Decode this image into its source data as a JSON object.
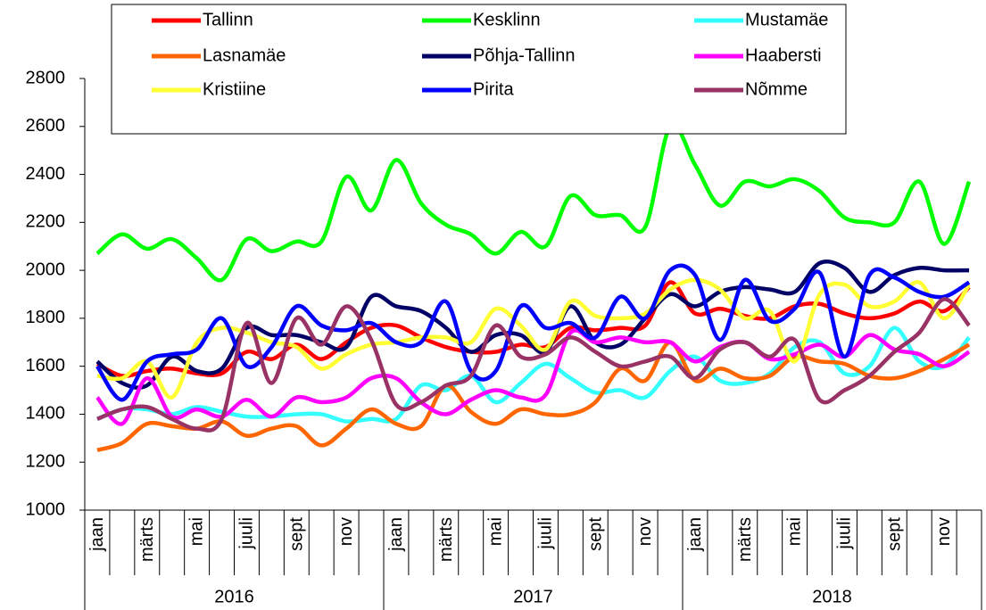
{
  "chart_data": {
    "type": "line",
    "categories": [
      "jaan",
      null,
      "märts",
      null,
      "mai",
      null,
      "juuli",
      null,
      "sept",
      null,
      "nov",
      null,
      "jaan",
      null,
      "märts",
      null,
      "mai",
      null,
      "juuli",
      null,
      "sept",
      null,
      "nov",
      null,
      "jaan",
      null,
      "märts",
      null,
      "mai",
      null,
      "juuli",
      null,
      "sept",
      null,
      "nov",
      null
    ],
    "years": [
      "2016",
      "2017",
      "2018"
    ],
    "ylim": [
      1000,
      2800
    ],
    "yticks": [
      1000,
      1200,
      1400,
      1600,
      1800,
      2000,
      2200,
      2400,
      2600,
      2800
    ],
    "series": [
      {
        "name": "Tallinn",
        "color": "#ff0000",
        "values": [
          1610,
          1560,
          1580,
          1590,
          1570,
          1570,
          1660,
          1630,
          1690,
          1630,
          1700,
          1760,
          1770,
          1720,
          1680,
          1660,
          1660,
          1690,
          1680,
          1760,
          1750,
          1760,
          1770,
          1950,
          1820,
          1840,
          1810,
          1800,
          1850,
          1860,
          1820,
          1800,
          1820,
          1870,
          1830,
          1930
        ]
      },
      {
        "name": "Kesklinn",
        "color": "#00ff00",
        "values": [
          2070,
          2150,
          2090,
          2130,
          2050,
          1960,
          2130,
          2080,
          2120,
          2120,
          2390,
          2250,
          2460,
          2280,
          2190,
          2150,
          2070,
          2160,
          2100,
          2310,
          2230,
          2230,
          2180,
          2600,
          2440,
          2270,
          2370,
          2350,
          2380,
          2330,
          2220,
          2200,
          2200,
          2370,
          2110,
          2370
        ]
      },
      {
        "name": "Mustamäe",
        "color": "#33ffff",
        "values": [
          1380,
          1420,
          1420,
          1400,
          1430,
          1410,
          1390,
          1390,
          1400,
          1400,
          1370,
          1380,
          1380,
          1520,
          1500,
          1560,
          1450,
          1530,
          1610,
          1550,
          1490,
          1500,
          1470,
          1580,
          1640,
          1540,
          1530,
          1570,
          1680,
          1700,
          1570,
          1600,
          1760,
          1620,
          1600,
          1720
        ]
      },
      {
        "name": "Lasnamäe",
        "color": "#ff6600",
        "values": [
          1250,
          1280,
          1360,
          1350,
          1340,
          1370,
          1310,
          1340,
          1350,
          1270,
          1340,
          1420,
          1360,
          1350,
          1520,
          1410,
          1360,
          1420,
          1400,
          1400,
          1450,
          1590,
          1540,
          1700,
          1540,
          1590,
          1550,
          1560,
          1640,
          1620,
          1610,
          1560,
          1550,
          1580,
          1630,
          1690
        ]
      },
      {
        "name": "Põhja-Tallinn",
        "color": "#000066",
        "values": [
          1620,
          1530,
          1520,
          1640,
          1580,
          1590,
          1760,
          1730,
          1730,
          1700,
          1680,
          1890,
          1850,
          1830,
          1760,
          1660,
          1730,
          1730,
          1660,
          1850,
          1700,
          1690,
          1800,
          1900,
          1850,
          1910,
          1930,
          1920,
          1910,
          2030,
          2010,
          1910,
          1980,
          2010,
          2000,
          2000
        ]
      },
      {
        "name": "Haabersti",
        "color": "#ff00ff",
        "values": [
          1470,
          1360,
          1550,
          1390,
          1420,
          1390,
          1460,
          1390,
          1470,
          1450,
          1470,
          1550,
          1550,
          1450,
          1400,
          1460,
          1500,
          1470,
          1480,
          1740,
          1700,
          1720,
          1700,
          1700,
          1620,
          1680,
          1700,
          1630,
          1650,
          1690,
          1640,
          1730,
          1670,
          1650,
          1600,
          1660
        ]
      },
      {
        "name": "Kristiine",
        "color": "#ffff33",
        "values": [
          1560,
          1550,
          1620,
          1470,
          1700,
          1760,
          1740,
          1700,
          1680,
          1590,
          1650,
          1690,
          1700,
          1720,
          1720,
          1700,
          1840,
          1770,
          1670,
          1870,
          1810,
          1800,
          1820,
          1920,
          1960,
          1920,
          1800,
          1830,
          1620,
          1900,
          1940,
          1850,
          1870,
          1950,
          1800,
          1940
        ]
      },
      {
        "name": "Pirita",
        "color": "#0000ff",
        "values": [
          1600,
          1460,
          1620,
          1650,
          1670,
          1800,
          1600,
          1680,
          1850,
          1770,
          1750,
          1780,
          1700,
          1700,
          1870,
          1580,
          1580,
          1850,
          1760,
          1780,
          1720,
          1890,
          1800,
          2000,
          1980,
          1710,
          1960,
          1790,
          1840,
          1990,
          1640,
          1980,
          1970,
          1910,
          1890,
          1950
        ]
      },
      {
        "name": "Nõmme",
        "color": "#993366",
        "values": [
          1380,
          1420,
          1430,
          1380,
          1340,
          1380,
          1780,
          1530,
          1800,
          1690,
          1850,
          1710,
          1440,
          1450,
          1520,
          1560,
          1770,
          1640,
          1650,
          1720,
          1660,
          1600,
          1620,
          1640,
          1550,
          1670,
          1700,
          1640,
          1710,
          1460,
          1500,
          1560,
          1660,
          1740,
          1880,
          1770
        ]
      }
    ]
  }
}
